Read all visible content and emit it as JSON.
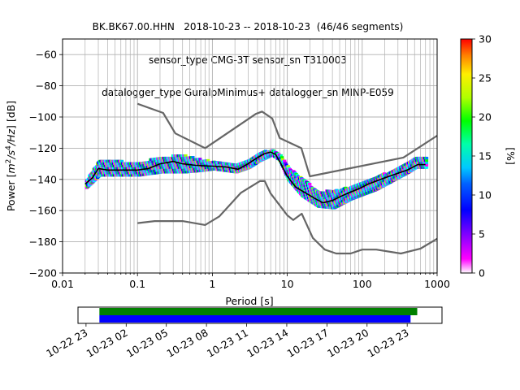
{
  "title_lines": [
    "BK.BK67.00.HHN   2018-10-23 -- 2018-10-23  (46/46 segments)",
    "sensor_type CMG-3T sensor_sn T310003",
    "datalogger_type GuralpMinimus+ datalogger_sn MINP-E059"
  ],
  "colors": {
    "nlnm_nhnm": "#666666",
    "mode_line": "#000000",
    "coverage_green": "#008000",
    "coverage_blue": "#0000ff",
    "grid": "#b0b0b0"
  },
  "chart_data": [
    {
      "type": "heatmap",
      "title": "",
      "xlabel": "Period [s]",
      "ylabel": "Power [m²/s⁴/Hz] [dB]",
      "ylabel_main": "Power [",
      "ylabel_units": "m",
      "ylabel_exp1": "2",
      "ylabel_mid": "/s",
      "ylabel_exp2": "4",
      "ylabel_end": "/Hz",
      "ylabel_close": "] [dB]",
      "xscale": "log",
      "xlim": [
        0.01,
        1000
      ],
      "ylim": [
        -200,
        -50
      ],
      "x_tick_labels": [
        "0.01",
        "0.1",
        "1",
        "10",
        "100",
        "1000"
      ],
      "y_ticks": [
        -60,
        -80,
        -100,
        -120,
        -140,
        -160,
        -180,
        -200
      ],
      "y_tick_labels": [
        "−60",
        "−80",
        "−100",
        "−120",
        "−140",
        "−160",
        "−180",
        "−200"
      ],
      "grid": true,
      "colorbar": {
        "label": "[%]",
        "range": [
          0,
          30
        ],
        "ticks": [
          0,
          5,
          10,
          15,
          20,
          25,
          30
        ],
        "tick_labels": [
          "0",
          "5",
          "10",
          "15",
          "20",
          "25",
          "30"
        ]
      },
      "series": [
        {
          "key": "nhnm",
          "points": [
            [
              0.1,
              -91.5
            ],
            [
              0.22,
              -97.4
            ],
            [
              0.32,
              -110.5
            ],
            [
              0.8,
              -120
            ],
            [
              3.8,
              -98
            ],
            [
              4.6,
              -96.5
            ],
            [
              6.3,
              -101
            ],
            [
              7.9,
              -113.5
            ],
            [
              15.4,
              -120
            ],
            [
              20,
              -138
            ],
            [
              354.8,
              -126
            ],
            [
              1000,
              -112
            ]
          ]
        },
        {
          "key": "nlnm",
          "points": [
            [
              0.1,
              -168
            ],
            [
              0.17,
              -166.7
            ],
            [
              0.4,
              -166.7
            ],
            [
              0.8,
              -169.2
            ],
            [
              1.24,
              -163.7
            ],
            [
              2.4,
              -148.6
            ],
            [
              4.3,
              -141.1
            ],
            [
              5,
              -141.1
            ],
            [
              6,
              -149
            ],
            [
              10,
              -163
            ],
            [
              12,
              -166
            ],
            [
              15.6,
              -162
            ],
            [
              21.9,
              -177.5
            ],
            [
              31.6,
              -185
            ],
            [
              45,
              -187.5
            ],
            [
              70,
              -187.5
            ],
            [
              100,
              -185
            ],
            [
              154.5,
              -185
            ],
            [
              328.2,
              -187.5
            ],
            [
              600,
              -184.4
            ],
            [
              1000,
              -178
            ]
          ]
        },
        {
          "key": "mode",
          "points": [
            [
              0.02,
              -143
            ],
            [
              0.025,
              -139
            ],
            [
              0.03,
              -133
            ],
            [
              0.04,
              -134
            ],
            [
              0.06,
              -134
            ],
            [
              0.1,
              -134
            ],
            [
              0.14,
              -133
            ],
            [
              0.2,
              -130
            ],
            [
              0.3,
              -128.5
            ],
            [
              0.4,
              -130
            ],
            [
              0.6,
              -131
            ],
            [
              1,
              -131.5
            ],
            [
              1.5,
              -132
            ],
            [
              2.2,
              -133.5
            ],
            [
              3,
              -130
            ],
            [
              4,
              -126
            ],
            [
              5,
              -123.5
            ],
            [
              6,
              -122.5
            ],
            [
              7,
              -124
            ],
            [
              8,
              -129
            ],
            [
              10,
              -138
            ],
            [
              13,
              -145
            ],
            [
              18,
              -149
            ],
            [
              25,
              -153
            ],
            [
              30,
              -155
            ],
            [
              40,
              -153.5
            ],
            [
              60,
              -149.5
            ],
            [
              90,
              -146
            ],
            [
              120,
              -143
            ],
            [
              200,
              -139
            ],
            [
              400,
              -134
            ],
            [
              550,
              -130.5
            ],
            [
              700,
              -130.5
            ]
          ]
        }
      ],
      "density_band": {
        "upper": [
          [
            0.02,
            -141
          ],
          [
            0.03,
            -128
          ],
          [
            0.06,
            -129
          ],
          [
            0.1,
            -130
          ],
          [
            0.2,
            -126
          ],
          [
            0.4,
            -125
          ],
          [
            0.7,
            -128
          ],
          [
            1,
            -129
          ],
          [
            2,
            -131
          ],
          [
            3,
            -128
          ],
          [
            4,
            -124
          ],
          [
            6,
            -121
          ],
          [
            7.5,
            -124
          ],
          [
            10,
            -133
          ],
          [
            15,
            -140
          ],
          [
            25,
            -148
          ],
          [
            40,
            -148
          ],
          [
            70,
            -145
          ],
          [
            150,
            -139
          ],
          [
            400,
            -130
          ],
          [
            500,
            -126
          ],
          [
            700,
            -126
          ]
        ],
        "lower": [
          [
            0.02,
            -146
          ],
          [
            0.03,
            -138
          ],
          [
            0.06,
            -138
          ],
          [
            0.1,
            -138
          ],
          [
            0.2,
            -136
          ],
          [
            0.4,
            -136
          ],
          [
            0.7,
            -135
          ],
          [
            1,
            -134
          ],
          [
            2,
            -136
          ],
          [
            3,
            -133
          ],
          [
            4,
            -129
          ],
          [
            6,
            -125
          ],
          [
            7.5,
            -128
          ],
          [
            10,
            -141
          ],
          [
            15,
            -151
          ],
          [
            25,
            -158
          ],
          [
            40,
            -159
          ],
          [
            70,
            -153
          ],
          [
            150,
            -147
          ],
          [
            400,
            -136
          ],
          [
            500,
            -133
          ],
          [
            700,
            -133
          ]
        ]
      }
    },
    {
      "type": "timeline",
      "tick_labels": [
        "10-22 23",
        "10-23 02",
        "10-23 05",
        "10-23 08",
        "10-23 11",
        "10-23 14",
        "10-23 17",
        "10-23 20",
        "10-23 23"
      ],
      "tick_hours": [
        -1,
        2,
        5,
        8,
        11,
        14,
        17,
        20,
        23
      ],
      "xlim_hours": [
        -1.6,
        25.6
      ],
      "green_span_hours": [
        0.0,
        23.75
      ],
      "blue_span_hours": [
        0.0,
        23.25
      ]
    }
  ]
}
